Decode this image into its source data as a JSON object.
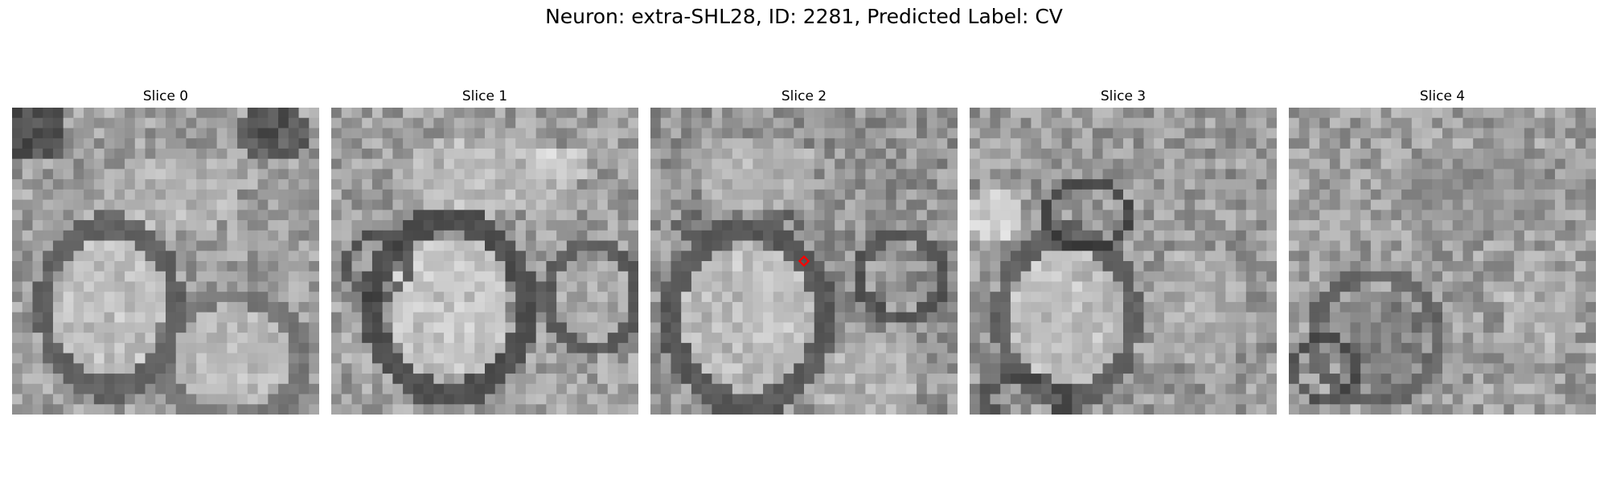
{
  "figure": {
    "title": "Neuron: extra-SHL28, ID: 2281, Predicted Label: CV",
    "marker_color": "#ff0000"
  },
  "slices": [
    {
      "label": "Slice 0"
    },
    {
      "label": "Slice 1"
    },
    {
      "label": "Slice 2",
      "marker": true
    },
    {
      "label": "Slice 3"
    },
    {
      "label": "Slice 4"
    }
  ]
}
